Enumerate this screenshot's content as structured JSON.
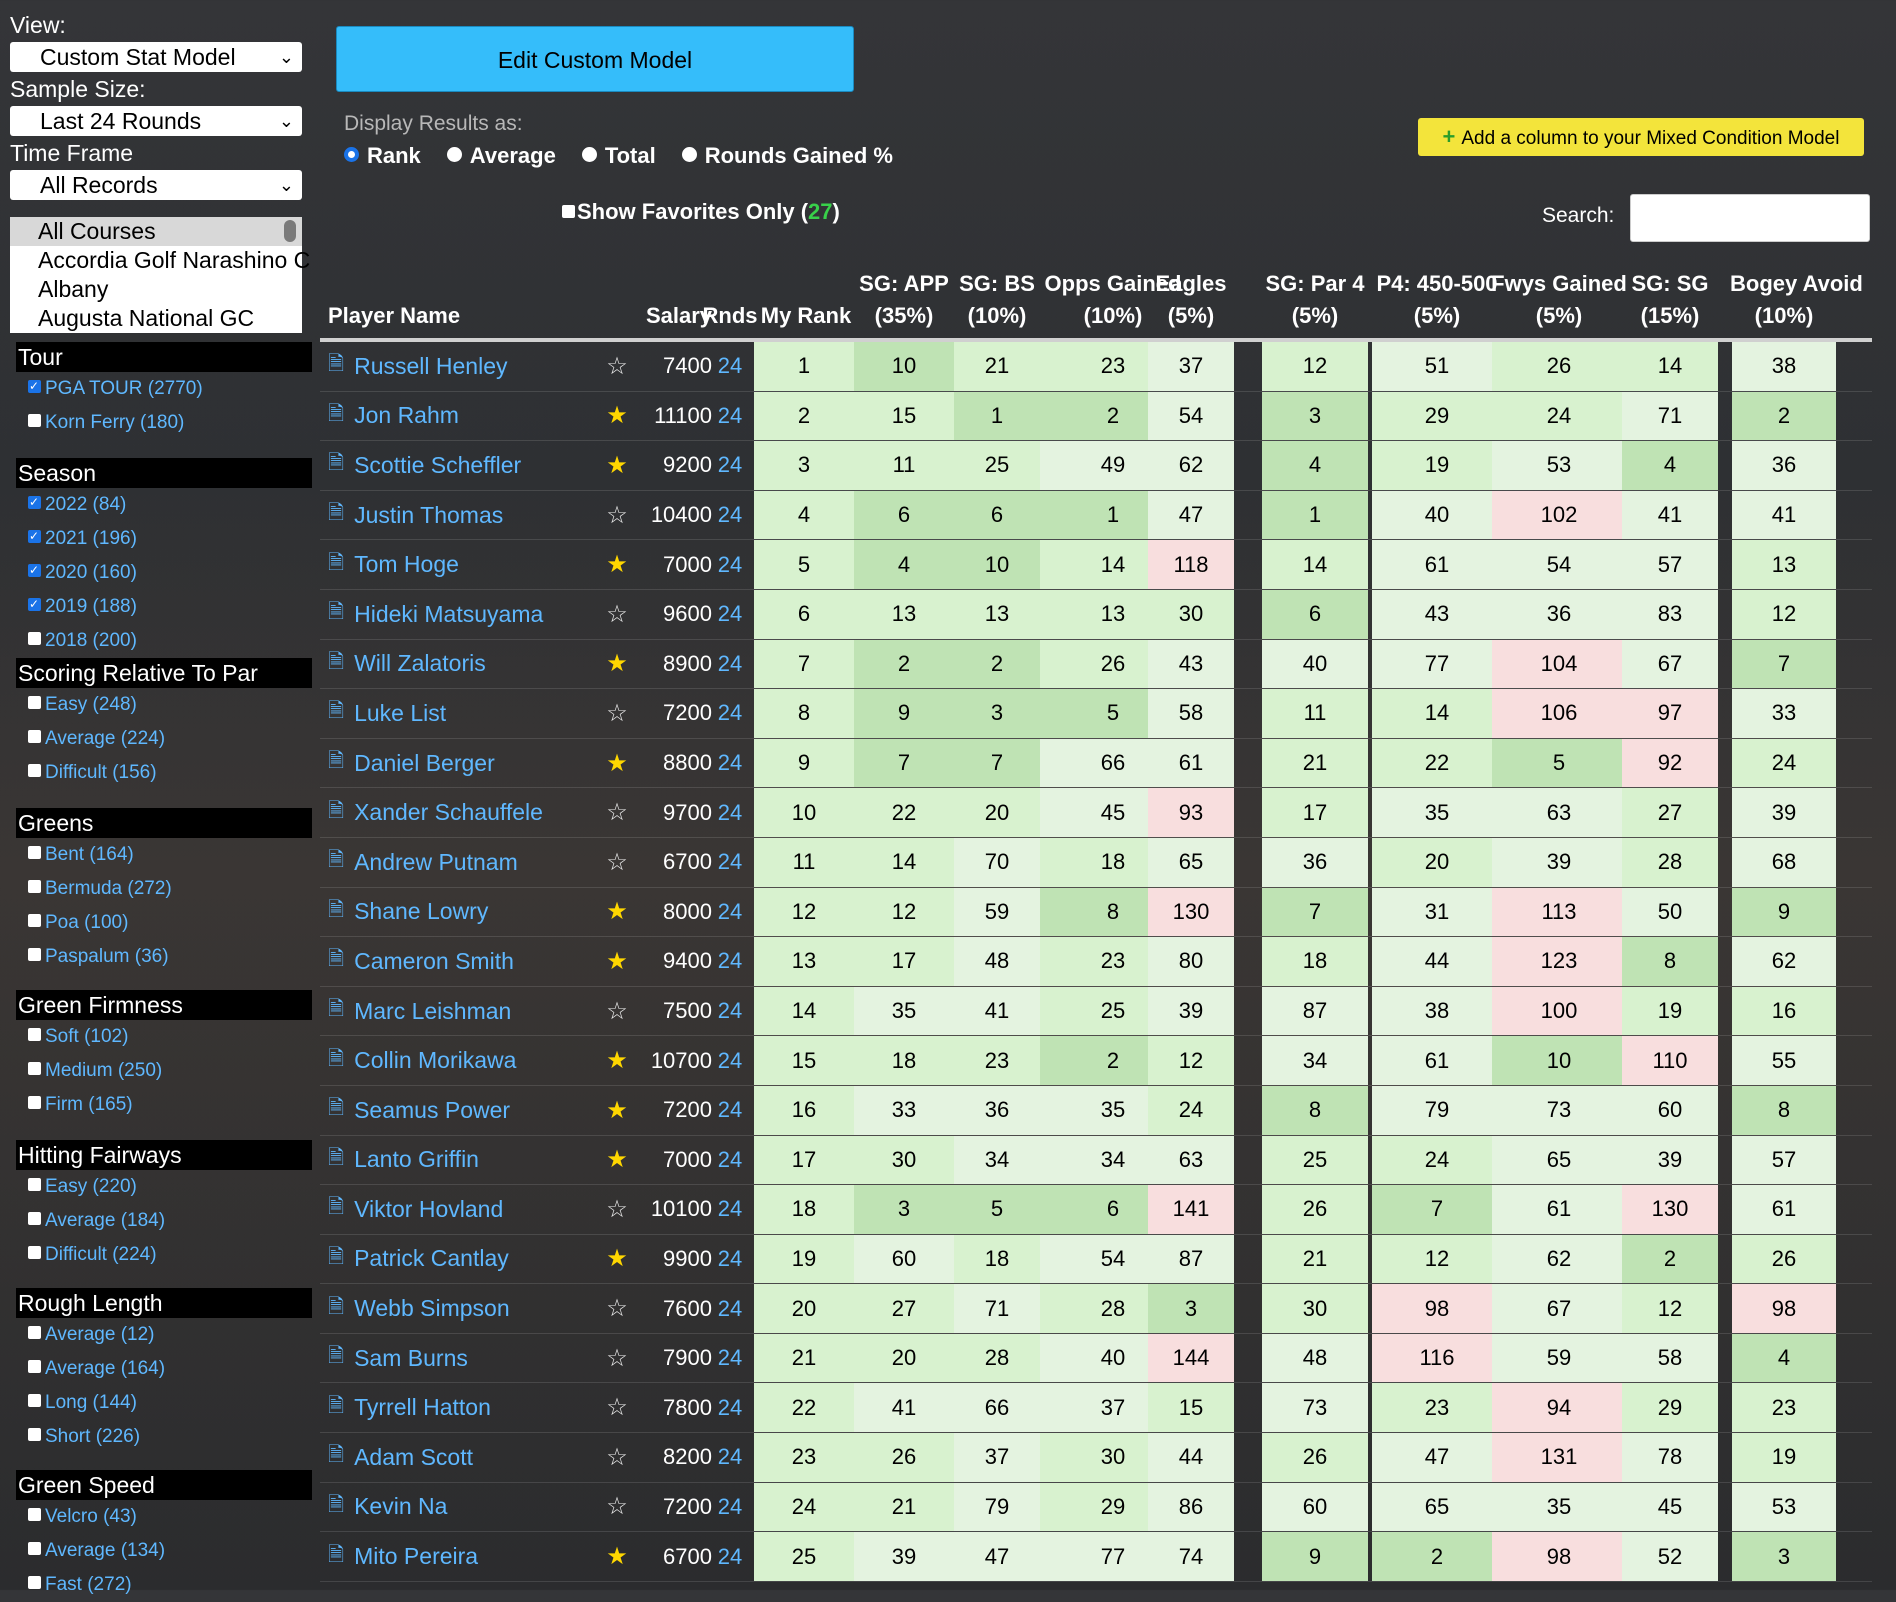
{
  "sidebar": {
    "view_label": "View:",
    "view_value": "Custom Stat Model",
    "sample_label": "Sample Size:",
    "sample_value": "Last 24 Rounds",
    "timeframe_label": "Time Frame",
    "timeframe_value": "All Records",
    "courses": [
      "All Courses",
      "Accordia Golf Narashino C",
      "Albany",
      "Augusta National GC"
    ],
    "groups": [
      {
        "title": "Tour",
        "options": [
          {
            "label": "PGA TOUR (2770)",
            "checked": true
          },
          {
            "label": "Korn Ferry (180)",
            "checked": false
          }
        ]
      },
      {
        "title": "Season",
        "options": [
          {
            "label": "2022 (84)",
            "checked": true
          },
          {
            "label": "2021 (196)",
            "checked": true
          },
          {
            "label": "2020 (160)",
            "checked": true
          },
          {
            "label": "2019 (188)",
            "checked": true
          },
          {
            "label": "2018 (200)",
            "checked": false
          }
        ]
      },
      {
        "title": "Scoring Relative To Par",
        "options": [
          {
            "label": "Easy (248)",
            "checked": false
          },
          {
            "label": "Average (224)",
            "checked": false
          },
          {
            "label": "Difficult (156)",
            "checked": false
          }
        ]
      },
      {
        "title": "Greens",
        "options": [
          {
            "label": "Bent (164)",
            "checked": false
          },
          {
            "label": "Bermuda (272)",
            "checked": false
          },
          {
            "label": "Poa (100)",
            "checked": false
          },
          {
            "label": "Paspalum (36)",
            "checked": false
          }
        ]
      },
      {
        "title": "Green Firmness",
        "options": [
          {
            "label": "Soft (102)",
            "checked": false
          },
          {
            "label": "Medium (250)",
            "checked": false
          },
          {
            "label": "Firm (165)",
            "checked": false
          }
        ]
      },
      {
        "title": "Hitting Fairways",
        "options": [
          {
            "label": "Easy (220)",
            "checked": false
          },
          {
            "label": "Average (184)",
            "checked": false
          },
          {
            "label": "Difficult (224)",
            "checked": false
          }
        ]
      },
      {
        "title": "Rough Length",
        "options": [
          {
            "label": "Average (12)",
            "checked": false
          },
          {
            "label": "Average (164)",
            "checked": false
          },
          {
            "label": "Long (144)",
            "checked": false
          },
          {
            "label": "Short (226)",
            "checked": false
          }
        ]
      },
      {
        "title": "Green Speed",
        "options": [
          {
            "label": "Velcro (43)",
            "checked": false
          },
          {
            "label": "Average (134)",
            "checked": false
          },
          {
            "label": "Fast (272)",
            "checked": false
          }
        ]
      }
    ]
  },
  "controls": {
    "edit_button": "Edit Custom Model",
    "display_label": "Display Results as:",
    "radios": [
      {
        "label": "Rank",
        "selected": true
      },
      {
        "label": "Average",
        "selected": false
      },
      {
        "label": "Total",
        "selected": false
      },
      {
        "label": "Rounds Gained %",
        "selected": false
      }
    ],
    "fav_label": "Show Favorites Only (",
    "fav_count": "27",
    "fav_close": ")",
    "add_column": "Add a column to your Mixed Condition Model",
    "search_label": "Search:",
    "search_value": ""
  },
  "table": {
    "headers": {
      "player": "Player Name",
      "salary": "Salary",
      "rnds": "Rnds",
      "my_rank": "My Rank",
      "stats": [
        {
          "name": "SG: APP",
          "weight": "(35%)"
        },
        {
          "name": "SG: BS",
          "weight": "(10%)"
        },
        {
          "name": "Opps Gained",
          "weight": "(10%)"
        },
        {
          "name": "Eagles",
          "weight": "(5%)"
        },
        {
          "name": "SG: Par 4",
          "weight": "(5%)"
        },
        {
          "name": "P4: 450-500",
          "weight": "(5%)"
        },
        {
          "name": "Fwys Gained",
          "weight": "(5%)"
        },
        {
          "name": "SG: SG",
          "weight": "(15%)"
        },
        {
          "name": "Bogey Avoid",
          "weight": "(10%)"
        }
      ]
    },
    "colors": {
      "dark": "#bfe3b4",
      "mid": "#d8f2cf",
      "light": "#e4f3e0",
      "red": "#f8dede"
    },
    "rows": [
      {
        "name": "Russell Henley",
        "fav": false,
        "salary": "7400",
        "rnds": "24",
        "rank": "1",
        "stats": [
          "10",
          "21",
          "23",
          "37",
          "12",
          "51",
          "26",
          "14",
          "38"
        ]
      },
      {
        "name": "Jon Rahm",
        "fav": true,
        "salary": "11100",
        "rnds": "24",
        "rank": "2",
        "stats": [
          "15",
          "1",
          "2",
          "54",
          "3",
          "29",
          "24",
          "71",
          "2"
        ]
      },
      {
        "name": "Scottie Scheffler",
        "fav": true,
        "salary": "9200",
        "rnds": "24",
        "rank": "3",
        "stats": [
          "11",
          "25",
          "49",
          "62",
          "4",
          "19",
          "53",
          "4",
          "36"
        ]
      },
      {
        "name": "Justin Thomas",
        "fav": false,
        "salary": "10400",
        "rnds": "24",
        "rank": "4",
        "stats": [
          "6",
          "6",
          "1",
          "47",
          "1",
          "40",
          "102",
          "41",
          "41"
        ]
      },
      {
        "name": "Tom Hoge",
        "fav": true,
        "salary": "7000",
        "rnds": "24",
        "rank": "5",
        "stats": [
          "4",
          "10",
          "14",
          "118",
          "14",
          "61",
          "54",
          "57",
          "13"
        ]
      },
      {
        "name": "Hideki Matsuyama",
        "fav": false,
        "salary": "9600",
        "rnds": "24",
        "rank": "6",
        "stats": [
          "13",
          "13",
          "13",
          "30",
          "6",
          "43",
          "36",
          "83",
          "12"
        ]
      },
      {
        "name": "Will Zalatoris",
        "fav": true,
        "salary": "8900",
        "rnds": "24",
        "rank": "7",
        "stats": [
          "2",
          "2",
          "26",
          "43",
          "40",
          "77",
          "104",
          "67",
          "7"
        ]
      },
      {
        "name": "Luke List",
        "fav": false,
        "salary": "7200",
        "rnds": "24",
        "rank": "8",
        "stats": [
          "9",
          "3",
          "5",
          "58",
          "11",
          "14",
          "106",
          "97",
          "33"
        ]
      },
      {
        "name": "Daniel Berger",
        "fav": true,
        "salary": "8800",
        "rnds": "24",
        "rank": "9",
        "stats": [
          "7",
          "7",
          "66",
          "61",
          "21",
          "22",
          "5",
          "92",
          "24"
        ]
      },
      {
        "name": "Xander Schauffele",
        "fav": false,
        "salary": "9700",
        "rnds": "24",
        "rank": "10",
        "stats": [
          "22",
          "20",
          "45",
          "93",
          "17",
          "35",
          "63",
          "27",
          "39"
        ]
      },
      {
        "name": "Andrew Putnam",
        "fav": false,
        "salary": "6700",
        "rnds": "24",
        "rank": "11",
        "stats": [
          "14",
          "70",
          "18",
          "65",
          "36",
          "20",
          "39",
          "28",
          "68"
        ]
      },
      {
        "name": "Shane Lowry",
        "fav": true,
        "salary": "8000",
        "rnds": "24",
        "rank": "12",
        "stats": [
          "12",
          "59",
          "8",
          "130",
          "7",
          "31",
          "113",
          "50",
          "9"
        ]
      },
      {
        "name": "Cameron Smith",
        "fav": true,
        "salary": "9400",
        "rnds": "24",
        "rank": "13",
        "stats": [
          "17",
          "48",
          "23",
          "80",
          "18",
          "44",
          "123",
          "8",
          "62"
        ]
      },
      {
        "name": "Marc Leishman",
        "fav": false,
        "salary": "7500",
        "rnds": "24",
        "rank": "14",
        "stats": [
          "35",
          "41",
          "25",
          "39",
          "87",
          "38",
          "100",
          "19",
          "16"
        ]
      },
      {
        "name": "Collin Morikawa",
        "fav": true,
        "salary": "10700",
        "rnds": "24",
        "rank": "15",
        "stats": [
          "18",
          "23",
          "2",
          "12",
          "34",
          "61",
          "10",
          "110",
          "55"
        ]
      },
      {
        "name": "Seamus Power",
        "fav": true,
        "salary": "7200",
        "rnds": "24",
        "rank": "16",
        "stats": [
          "33",
          "36",
          "35",
          "24",
          "8",
          "79",
          "73",
          "60",
          "8"
        ]
      },
      {
        "name": "Lanto Griffin",
        "fav": true,
        "salary": "7000",
        "rnds": "24",
        "rank": "17",
        "stats": [
          "30",
          "34",
          "34",
          "63",
          "25",
          "24",
          "65",
          "39",
          "57"
        ]
      },
      {
        "name": "Viktor Hovland",
        "fav": false,
        "salary": "10100",
        "rnds": "24",
        "rank": "18",
        "stats": [
          "3",
          "5",
          "6",
          "141",
          "26",
          "7",
          "61",
          "130",
          "61"
        ]
      },
      {
        "name": "Patrick Cantlay",
        "fav": true,
        "salary": "9900",
        "rnds": "24",
        "rank": "19",
        "stats": [
          "60",
          "18",
          "54",
          "87",
          "21",
          "12",
          "62",
          "2",
          "26"
        ]
      },
      {
        "name": "Webb Simpson",
        "fav": false,
        "salary": "7600",
        "rnds": "24",
        "rank": "20",
        "stats": [
          "27",
          "71",
          "28",
          "3",
          "30",
          "98",
          "67",
          "12",
          "98"
        ]
      },
      {
        "name": "Sam Burns",
        "fav": false,
        "salary": "7900",
        "rnds": "24",
        "rank": "21",
        "stats": [
          "20",
          "28",
          "40",
          "144",
          "48",
          "116",
          "59",
          "58",
          "4"
        ]
      },
      {
        "name": "Tyrrell Hatton",
        "fav": false,
        "salary": "7800",
        "rnds": "24",
        "rank": "22",
        "stats": [
          "41",
          "66",
          "37",
          "15",
          "73",
          "23",
          "94",
          "29",
          "23"
        ]
      },
      {
        "name": "Adam Scott",
        "fav": false,
        "salary": "8200",
        "rnds": "24",
        "rank": "23",
        "stats": [
          "26",
          "37",
          "30",
          "44",
          "26",
          "47",
          "131",
          "78",
          "19"
        ]
      },
      {
        "name": "Kevin Na",
        "fav": false,
        "salary": "7200",
        "rnds": "24",
        "rank": "24",
        "stats": [
          "21",
          "79",
          "29",
          "86",
          "60",
          "65",
          "35",
          "45",
          "53"
        ]
      },
      {
        "name": "Mito Pereira",
        "fav": true,
        "salary": "6700",
        "rnds": "24",
        "rank": "25",
        "stats": [
          "39",
          "47",
          "77",
          "74",
          "9",
          "2",
          "98",
          "52",
          "3"
        ]
      }
    ]
  }
}
